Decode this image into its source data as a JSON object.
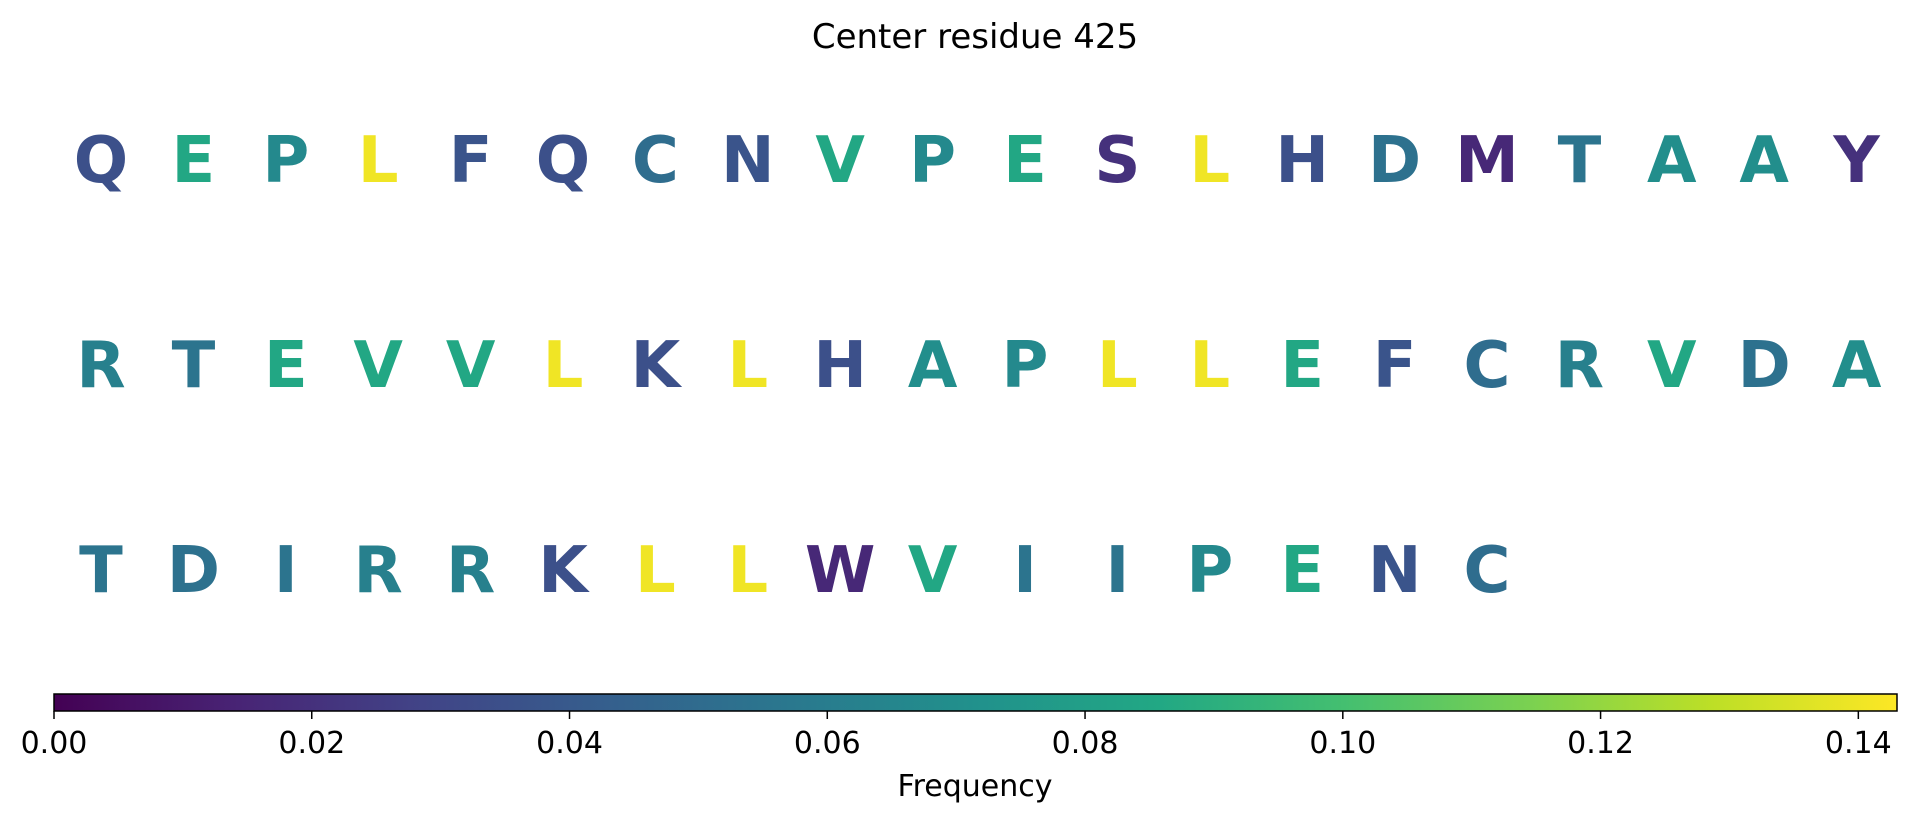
{
  "chart_data": {
    "type": "heatmap",
    "title": "Center residue 425",
    "sequence": [
      {
        "residue": "Q",
        "frequency": 0.035
      },
      {
        "residue": "E",
        "frequency": 0.085
      },
      {
        "residue": "P",
        "frequency": 0.067
      },
      {
        "residue": "L",
        "frequency": 0.14
      },
      {
        "residue": "F",
        "frequency": 0.037
      },
      {
        "residue": "Q",
        "frequency": 0.035
      },
      {
        "residue": "C",
        "frequency": 0.051
      },
      {
        "residue": "N",
        "frequency": 0.037
      },
      {
        "residue": "V",
        "frequency": 0.085
      },
      {
        "residue": "P",
        "frequency": 0.067
      },
      {
        "residue": "E",
        "frequency": 0.085
      },
      {
        "residue": "S",
        "frequency": 0.02
      },
      {
        "residue": "L",
        "frequency": 0.14
      },
      {
        "residue": "H",
        "frequency": 0.035
      },
      {
        "residue": "D",
        "frequency": 0.053
      },
      {
        "residue": "M",
        "frequency": 0.016
      },
      {
        "residue": "T",
        "frequency": 0.055
      },
      {
        "residue": "A",
        "frequency": 0.07
      },
      {
        "residue": "A",
        "frequency": 0.07
      },
      {
        "residue": "Y",
        "frequency": 0.02
      },
      {
        "residue": "R",
        "frequency": 0.062
      },
      {
        "residue": "T",
        "frequency": 0.055
      },
      {
        "residue": "E",
        "frequency": 0.085
      },
      {
        "residue": "V",
        "frequency": 0.085
      },
      {
        "residue": "V",
        "frequency": 0.085
      },
      {
        "residue": "L",
        "frequency": 0.14
      },
      {
        "residue": "K",
        "frequency": 0.035
      },
      {
        "residue": "L",
        "frequency": 0.14
      },
      {
        "residue": "H",
        "frequency": 0.035
      },
      {
        "residue": "A",
        "frequency": 0.07
      },
      {
        "residue": "P",
        "frequency": 0.067
      },
      {
        "residue": "L",
        "frequency": 0.14
      },
      {
        "residue": "L",
        "frequency": 0.14
      },
      {
        "residue": "E",
        "frequency": 0.085
      },
      {
        "residue": "F",
        "frequency": 0.037
      },
      {
        "residue": "C",
        "frequency": 0.051
      },
      {
        "residue": "R",
        "frequency": 0.062
      },
      {
        "residue": "V",
        "frequency": 0.085
      },
      {
        "residue": "D",
        "frequency": 0.053
      },
      {
        "residue": "A",
        "frequency": 0.07
      },
      {
        "residue": "T",
        "frequency": 0.055
      },
      {
        "residue": "D",
        "frequency": 0.053
      },
      {
        "residue": "I",
        "frequency": 0.055
      },
      {
        "residue": "R",
        "frequency": 0.062
      },
      {
        "residue": "R",
        "frequency": 0.062
      },
      {
        "residue": "K",
        "frequency": 0.035
      },
      {
        "residue": "L",
        "frequency": 0.14
      },
      {
        "residue": "L",
        "frequency": 0.14
      },
      {
        "residue": "W",
        "frequency": 0.016
      },
      {
        "residue": "V",
        "frequency": 0.085
      },
      {
        "residue": "I",
        "frequency": 0.055
      },
      {
        "residue": "I",
        "frequency": 0.055
      },
      {
        "residue": "P",
        "frequency": 0.067
      },
      {
        "residue": "E",
        "frequency": 0.085
      },
      {
        "residue": "N",
        "frequency": 0.037
      },
      {
        "residue": "C",
        "frequency": 0.051
      }
    ],
    "residues_per_row": 20,
    "colorbar": {
      "label": "Frequency",
      "colormap": "viridis",
      "range": [
        0.0,
        0.143
      ],
      "ticks": [
        0.0,
        0.02,
        0.04,
        0.06,
        0.08,
        0.1,
        0.12,
        0.14
      ],
      "tick_labels": [
        "0.00",
        "0.02",
        "0.04",
        "0.06",
        "0.08",
        "0.10",
        "0.12",
        "0.14"
      ],
      "orientation": "horizontal",
      "placement": "bottom"
    }
  }
}
